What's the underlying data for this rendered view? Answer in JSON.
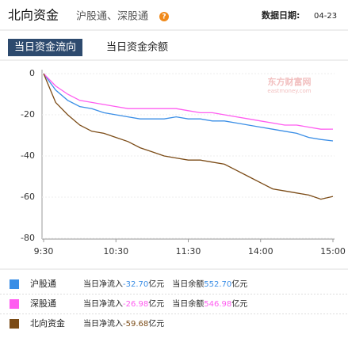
{
  "header": {
    "title": "北向资金",
    "subtitle": "沪股通、深股通",
    "help_icon": "?",
    "date_label": "数据日期:",
    "date": "04-23"
  },
  "tabs": [
    "当日资金流向",
    "当日资金余额"
  ],
  "chart_data": {
    "type": "line",
    "watermark": "东方财富网",
    "watermark_sub": "eastmoney.com",
    "x": [
      0,
      10,
      20,
      30,
      40,
      50,
      60,
      70,
      80,
      90,
      100,
      110,
      120,
      130,
      140,
      150,
      160,
      170,
      180,
      190,
      200,
      210,
      220,
      230,
      240
    ],
    "xlim": [
      0,
      240
    ],
    "xticks": [
      {
        "value": 0,
        "label": "9:30"
      },
      {
        "value": 60,
        "label": "10:30"
      },
      {
        "value": 120,
        "label": "11:30"
      },
      {
        "value": 180,
        "label": "14:00"
      },
      {
        "value": 240,
        "label": "15:00"
      }
    ],
    "ylim": [
      -80,
      0
    ],
    "yticks": [
      0,
      -20,
      -40,
      -60,
      -80
    ],
    "grid": true,
    "series": [
      {
        "name": "沪股通",
        "color": "#3a8ee6",
        "values": [
          0,
          -8,
          -13,
          -16,
          -17,
          -19,
          -20,
          -21,
          -22,
          -22,
          -22,
          -21,
          -22,
          -22,
          -23,
          -23,
          -24,
          -25,
          -26,
          -27,
          -28,
          -29,
          -31,
          -32,
          -32.7
        ]
      },
      {
        "name": "深股通",
        "color": "#ff5cf0",
        "values": [
          0,
          -6,
          -10,
          -13,
          -14,
          -15,
          -16,
          -17,
          -17,
          -17,
          -17,
          -17,
          -18,
          -19,
          -19,
          -20,
          -21,
          -22,
          -23,
          -24,
          -25,
          -25,
          -26,
          -27,
          -26.98
        ]
      },
      {
        "name": "北向资金",
        "color": "#7b4b16",
        "values": [
          0,
          -14,
          -20,
          -25,
          -28,
          -29,
          -31,
          -33,
          -36,
          -38,
          -40,
          -41,
          -42,
          -42,
          -43,
          -44,
          -47,
          -50,
          -53,
          -56,
          -57,
          -58,
          -59,
          -61,
          -59.68
        ]
      }
    ]
  },
  "legend_rows": [
    {
      "net_label": "当日净流入",
      "net": "-32.70",
      "net_unit": "亿元",
      "balance_label": "当日余额",
      "balance": "552.70",
      "balance_unit": "亿元"
    },
    {
      "net_label": "当日净流入",
      "net": "-26.98",
      "net_unit": "亿元",
      "balance_label": "当日余额",
      "balance": "546.98",
      "balance_unit": "亿元"
    },
    {
      "net_label": "当日净流入",
      "net": "-59.68",
      "net_unit": "亿元"
    }
  ]
}
